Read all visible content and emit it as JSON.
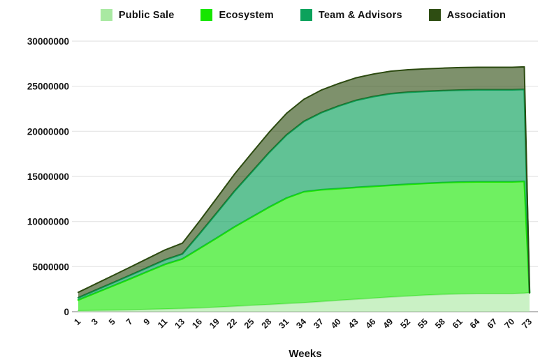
{
  "chart_data": {
    "type": "area",
    "stacked": true,
    "title": "",
    "xlabel": "Weeks",
    "ylabel": "",
    "ylim": [
      0,
      30000000
    ],
    "grid": "horizontal",
    "legend_position": "top",
    "y_ticks": [
      "0",
      "5000000",
      "10000000",
      "15000000",
      "20000000",
      "25000000",
      "30000000"
    ],
    "categories": [
      "1",
      "3",
      "5",
      "7",
      "9",
      "11",
      "13",
      "16",
      "19",
      "22",
      "25",
      "28",
      "31",
      "34",
      "37",
      "40",
      "43",
      "46",
      "49",
      "52",
      "55",
      "58",
      "61",
      "64",
      "67",
      "70",
      "73"
    ],
    "x_positions": [
      0,
      1,
      2,
      3,
      4,
      5,
      6,
      7,
      8,
      9,
      10,
      11,
      12,
      13,
      14,
      15,
      16,
      17,
      18,
      19,
      20,
      21,
      22,
      23,
      24,
      25,
      25.7,
      26
    ],
    "series": [
      {
        "name": "Public Sale",
        "color": "#a9e9a2",
        "line_color": "#9fe598",
        "fill_opacity": 0.62,
        "line_width": 2,
        "values": [
          100000,
          130000,
          160000,
          200000,
          250000,
          300000,
          350000,
          420000,
          500000,
          600000,
          700000,
          800000,
          900000,
          1000000,
          1120000,
          1250000,
          1380000,
          1500000,
          1620000,
          1730000,
          1830000,
          1910000,
          1970000,
          2000000,
          2000000,
          2000000,
          2050000,
          2100000
        ]
      },
      {
        "name": "Ecosystem",
        "color": "#17e600",
        "line_color": "#1de600",
        "fill_opacity": 0.62,
        "line_width": 2.5,
        "values": [
          1200000,
          1950000,
          2700000,
          3450000,
          4200000,
          4950000,
          5500000,
          6600000,
          7700000,
          8800000,
          9800000,
          10800000,
          11700000,
          12300000,
          12400000,
          12400000,
          12400000,
          12400000,
          12400000,
          12400000,
          12400000,
          12400000,
          12400000,
          12400000,
          12400000,
          12400000,
          12400000,
          0
        ]
      },
      {
        "name": "Team & Advisors",
        "color": "#0ca25c",
        "line_color": "#0b9e55",
        "fill_opacity": 0.65,
        "line_width": 2.5,
        "values": [
          250000,
          300000,
          350000,
          400000,
          450000,
          500000,
          550000,
          1650000,
          2800000,
          3950000,
          5000000,
          6050000,
          7000000,
          7800000,
          8550000,
          9150000,
          9650000,
          9950000,
          10150000,
          10200000,
          10200000,
          10200000,
          10200000,
          10200000,
          10200000,
          10200000,
          10200000,
          0
        ]
      },
      {
        "name": "Association",
        "color": "#2e4d12",
        "line_color": "#2c4a10",
        "fill_opacity": 0.62,
        "line_width": 2,
        "values": [
          600000,
          700000,
          800000,
          900000,
          1000000,
          1100000,
          1200000,
          1400000,
          1650000,
          1900000,
          2100000,
          2250000,
          2400000,
          2450000,
          2500000,
          2500000,
          2500000,
          2500000,
          2500000,
          2500000,
          2500000,
          2500000,
          2500000,
          2500000,
          2500000,
          2500000,
          2500000,
          0
        ]
      }
    ]
  }
}
